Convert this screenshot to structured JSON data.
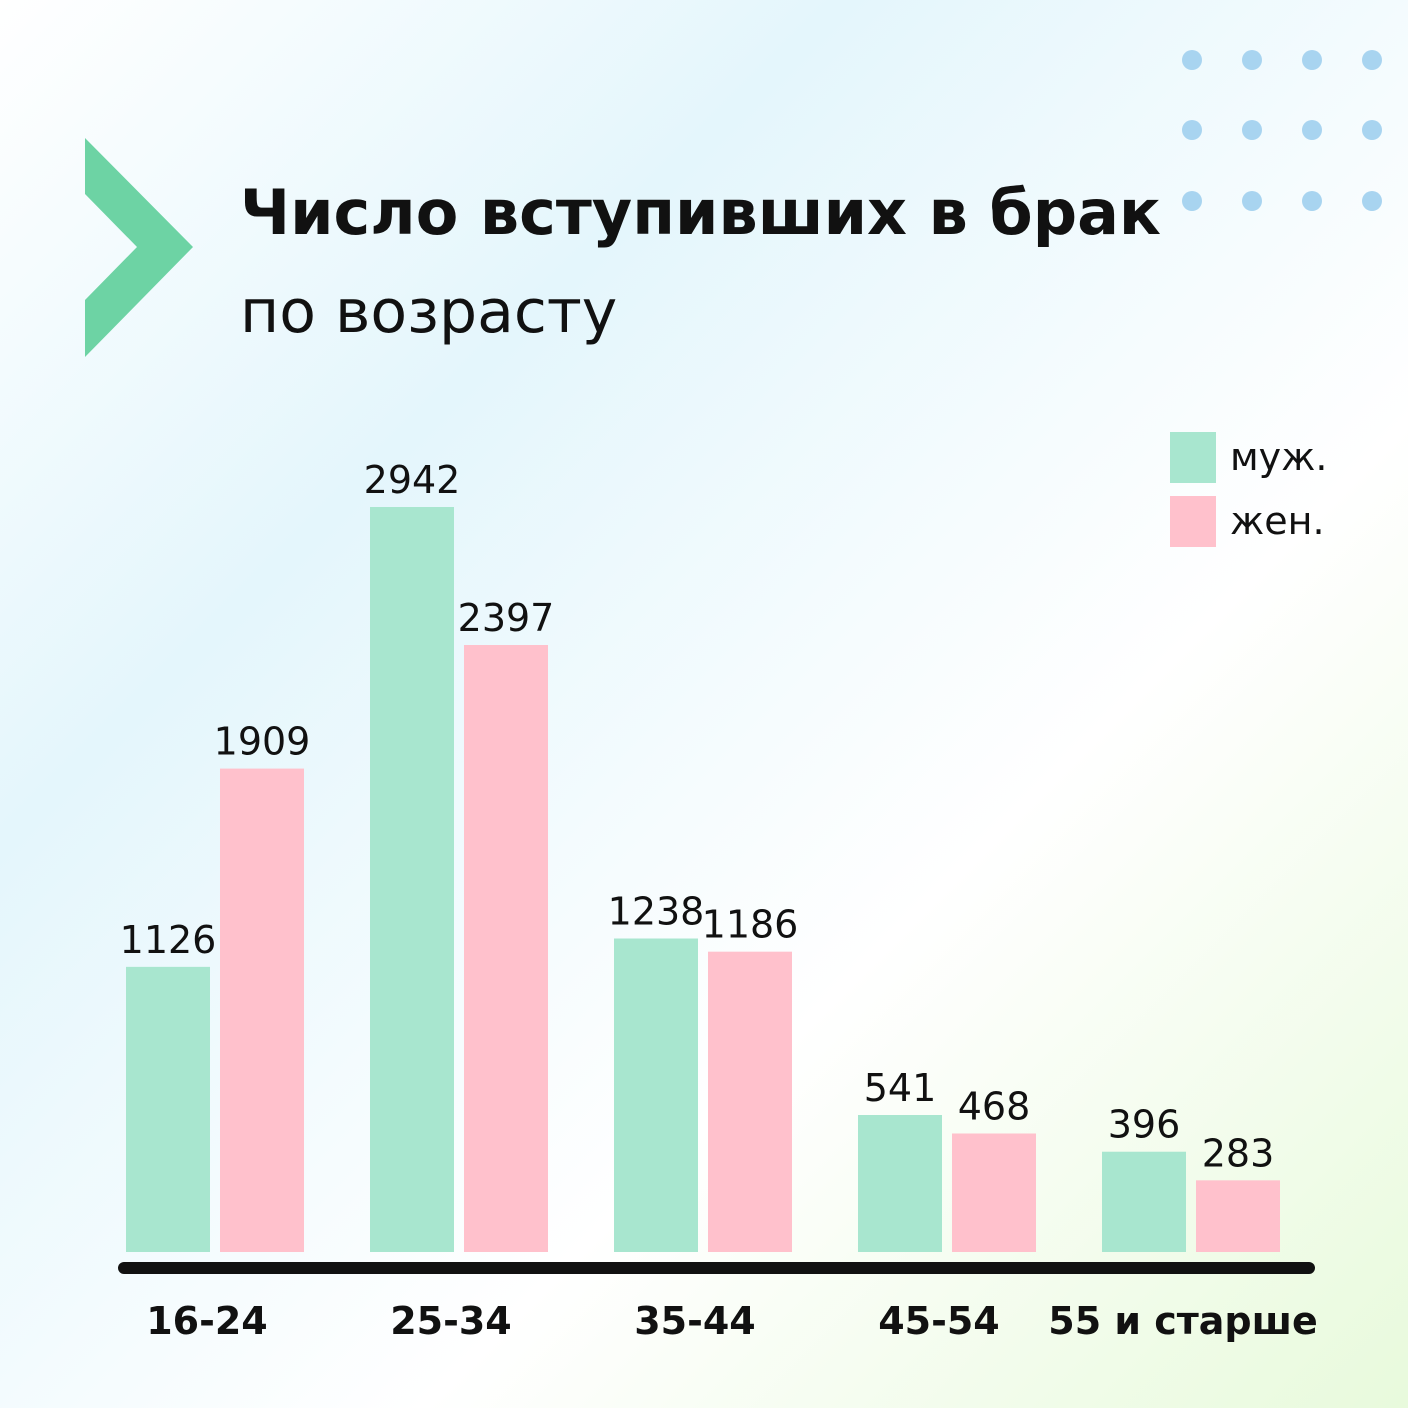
{
  "chart_data": {
    "type": "bar",
    "title": "Число вступивших в брак",
    "subtitle": "по возрасту",
    "categories": [
      "16-24",
      "25-34",
      "35-44",
      "45-54",
      "55 и старше"
    ],
    "series": [
      {
        "name": "муж.",
        "color": "#a8e6cf",
        "values": [
          1126,
          2942,
          1238,
          541,
          396
        ]
      },
      {
        "name": "жен.",
        "color": "#ffc1cc",
        "values": [
          1909,
          2397,
          1186,
          468,
          283
        ]
      }
    ],
    "legend": "top-right"
  }
}
